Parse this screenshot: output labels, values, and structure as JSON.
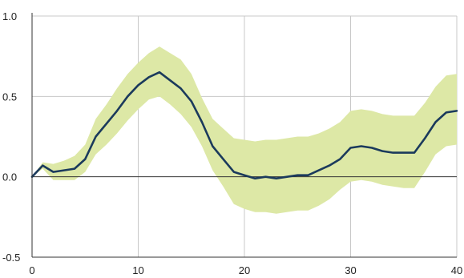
{
  "chart_data": {
    "type": "area",
    "title": "",
    "xlabel": "",
    "ylabel": "",
    "xlim": [
      0,
      40
    ],
    "ylim": [
      -0.5,
      1.0
    ],
    "x_ticks": [
      0,
      10,
      20,
      30,
      40
    ],
    "x_tick_labels": [
      "0",
      "10",
      "20",
      "30",
      "40"
    ],
    "y_ticks": [
      -0.5,
      0.0,
      0.5,
      1.0
    ],
    "y_tick_labels": [
      "-0.5",
      "0.0",
      "0.5",
      "1.0"
    ],
    "grid": true,
    "zero_line": true,
    "colors": {
      "line": "#1b3a5c",
      "band": "#dde8a6",
      "grid": "#c8c8c8",
      "axis": "#333333"
    },
    "x": [
      0,
      1,
      2,
      3,
      4,
      5,
      6,
      7,
      8,
      9,
      10,
      11,
      12,
      13,
      14,
      15,
      16,
      17,
      18,
      19,
      20,
      21,
      22,
      23,
      24,
      25,
      26,
      27,
      28,
      29,
      30,
      31,
      32,
      33,
      34,
      35,
      36,
      37,
      38,
      39,
      40
    ],
    "series": [
      {
        "values": [
          0.0,
          0.07,
          0.03,
          0.04,
          0.05,
          0.11,
          0.25,
          0.33,
          0.41,
          0.5,
          0.57,
          0.62,
          0.65,
          0.6,
          0.55,
          0.47,
          0.34,
          0.19,
          0.11,
          0.03,
          0.01,
          -0.01,
          0.0,
          -0.01,
          0.0,
          0.01,
          0.01,
          0.04,
          0.07,
          0.11,
          0.18,
          0.19,
          0.18,
          0.16,
          0.15,
          0.15,
          0.15,
          0.24,
          0.34,
          0.4,
          0.41
        ]
      }
    ],
    "bands": [
      {
        "lower": [
          0.0,
          0.05,
          -0.02,
          -0.02,
          -0.02,
          0.03,
          0.14,
          0.2,
          0.27,
          0.35,
          0.42,
          0.48,
          0.5,
          0.45,
          0.39,
          0.31,
          0.19,
          0.04,
          -0.06,
          -0.17,
          -0.2,
          -0.22,
          -0.22,
          -0.23,
          -0.22,
          -0.21,
          -0.21,
          -0.18,
          -0.14,
          -0.08,
          -0.03,
          -0.02,
          -0.03,
          -0.05,
          -0.06,
          -0.07,
          -0.07,
          0.03,
          0.14,
          0.19,
          0.2
        ],
        "upper": [
          0.0,
          0.09,
          0.08,
          0.1,
          0.13,
          0.2,
          0.36,
          0.45,
          0.55,
          0.64,
          0.71,
          0.77,
          0.81,
          0.77,
          0.73,
          0.64,
          0.49,
          0.36,
          0.3,
          0.24,
          0.23,
          0.22,
          0.23,
          0.23,
          0.24,
          0.25,
          0.25,
          0.27,
          0.3,
          0.34,
          0.41,
          0.42,
          0.41,
          0.39,
          0.38,
          0.38,
          0.38,
          0.46,
          0.56,
          0.63,
          0.64
        ]
      }
    ]
  }
}
